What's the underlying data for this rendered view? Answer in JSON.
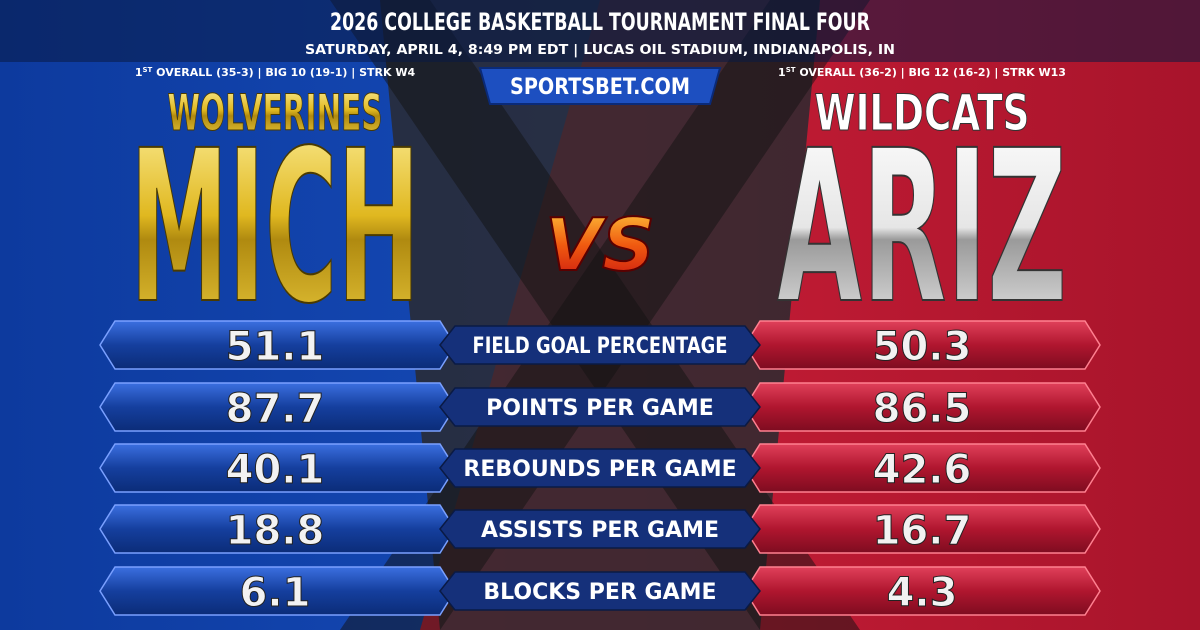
{
  "header": {
    "title": "2026 COLLEGE BASKETBALL TOURNAMENT FINAL FOUR",
    "subtitle": "SATURDAY, APRIL 4, 8:49 PM EDT  |  LUCAS OIL STADIUM, INDIANAPOLIS, IN",
    "site": "SPORTSBET.COM"
  },
  "teams": [
    {
      "rank": "1",
      "rank_suffix": "ST",
      "record": " OVERALL (35-3)  |  BIG 10 (19-1)  |  STRK W4",
      "nickname": "WOLVERINES",
      "abbr": "MICH"
    },
    {
      "rank": "1",
      "rank_suffix": "ST",
      "record": " OVERALL (36-2)  |  BIG 12 (16-2)  |  STRK W13",
      "nickname": "WILDCATS",
      "abbr": "ARIZ"
    }
  ],
  "versus": "VS",
  "stats": [
    {
      "label": "FIELD GOAL PERCENTAGE",
      "left": "51.1",
      "right": "50.3"
    },
    {
      "label": "POINTS PER GAME",
      "left": "87.7",
      "right": "86.5"
    },
    {
      "label": "REBOUNDS PER GAME",
      "left": "40.1",
      "right": "42.6"
    },
    {
      "label": "ASSISTS PER GAME",
      "left": "18.8",
      "right": "16.7"
    },
    {
      "label": "BLOCKS PER GAME",
      "left": "6.1",
      "right": "4.3"
    }
  ]
}
